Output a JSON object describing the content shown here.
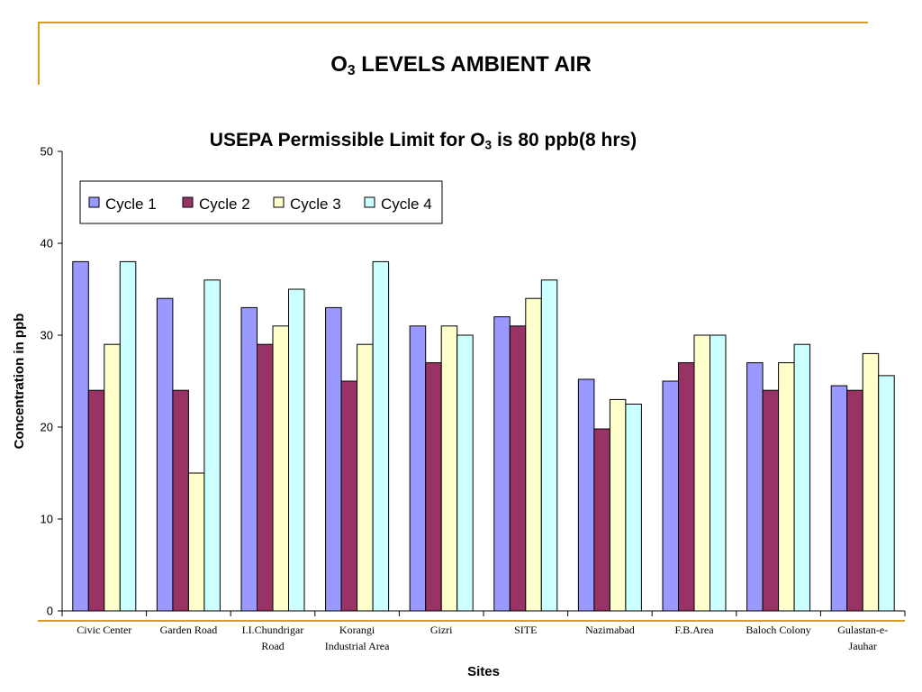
{
  "slide": {
    "title_main": "O",
    "title_sub": "3",
    "title_rest": " LEVELS AMBIENT AIR",
    "accent_color": "#d4a020"
  },
  "chart_data": {
    "type": "bar",
    "title_main": "USEPA Permissible Limit for O",
    "title_sub": "3",
    "title_rest": " is 80 ppb(8 hrs)",
    "xlabel": "Sites",
    "ylabel": "Concentration in ppb",
    "ylim": [
      0,
      50
    ],
    "yticks": [
      0,
      10,
      20,
      30,
      40,
      50
    ],
    "grid": false,
    "legend_position": "top-left",
    "categories": [
      [
        "Civic Center"
      ],
      [
        "Garden Road"
      ],
      [
        "I.I.Chundrigar",
        "Road"
      ],
      [
        "Korangi",
        "Industrial Area"
      ],
      [
        "Gizri"
      ],
      [
        "SITE"
      ],
      [
        "Nazimabad"
      ],
      [
        "F.B.Area"
      ],
      [
        "Baloch Colony"
      ],
      [
        "Gulastan-e-",
        "Jauhar"
      ]
    ],
    "series": [
      {
        "name": "Cycle 1",
        "color": "#9999ff",
        "values": [
          38,
          34,
          33,
          33,
          31,
          32,
          25.2,
          25,
          27,
          24.5
        ]
      },
      {
        "name": "Cycle 2",
        "color": "#993366",
        "values": [
          24,
          24,
          29,
          25,
          27,
          31,
          19.8,
          27,
          24,
          24
        ]
      },
      {
        "name": "Cycle 3",
        "color": "#ffffcc",
        "values": [
          29,
          15,
          31,
          29,
          31,
          34,
          23,
          30,
          27,
          28
        ]
      },
      {
        "name": "Cycle 4",
        "color": "#ccffff",
        "values": [
          38,
          36,
          35,
          38,
          30,
          36,
          22.5,
          30,
          29,
          25.6
        ]
      }
    ]
  }
}
